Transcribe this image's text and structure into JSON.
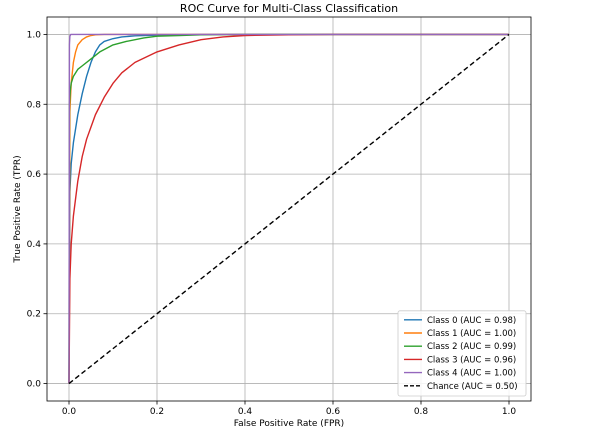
{
  "chart_data": {
    "type": "line",
    "title": "ROC Curve for Multi-Class Classification",
    "xlabel": "False Positive Rate (FPR)",
    "ylabel": "True Positive Rate (TPR)",
    "xlim": [
      -0.05,
      1.05
    ],
    "ylim": [
      -0.05,
      1.05
    ],
    "xticks": [
      0.0,
      0.2,
      0.4,
      0.6,
      0.8,
      1.0
    ],
    "xtick_labels": [
      "0.0",
      "0.2",
      "0.4",
      "0.6",
      "0.8",
      "1.0"
    ],
    "yticks": [
      0.0,
      0.2,
      0.4,
      0.6,
      0.8,
      1.0
    ],
    "ytick_labels": [
      "0.0",
      "0.2",
      "0.4",
      "0.6",
      "0.8",
      "1.0"
    ],
    "grid": true,
    "legend_position": "bottom-right",
    "series": [
      {
        "name": "Class 0 (AUC = 0.98)",
        "color": "#1f77b4",
        "dash": "solid",
        "x": [
          0,
          0.002,
          0.005,
          0.01,
          0.02,
          0.03,
          0.04,
          0.05,
          0.06,
          0.07,
          0.08,
          0.1,
          0.12,
          0.15,
          0.2,
          0.25,
          0.3,
          0.4,
          1.0
        ],
        "y": [
          0,
          0.55,
          0.63,
          0.69,
          0.77,
          0.83,
          0.88,
          0.92,
          0.95,
          0.97,
          0.98,
          0.988,
          0.993,
          0.996,
          0.998,
          0.999,
          1.0,
          1.0,
          1.0
        ]
      },
      {
        "name": "Class 1 (AUC = 1.00)",
        "color": "#ff7f0e",
        "dash": "solid",
        "x": [
          0,
          0.002,
          0.005,
          0.01,
          0.015,
          0.02,
          0.03,
          0.04,
          0.05,
          0.06,
          0.08,
          0.1,
          1.0
        ],
        "y": [
          0,
          0.78,
          0.86,
          0.92,
          0.95,
          0.97,
          0.985,
          0.993,
          0.997,
          0.999,
          1.0,
          1.0,
          1.0
        ]
      },
      {
        "name": "Class 2 (AUC = 0.99)",
        "color": "#2ca02c",
        "dash": "solid",
        "x": [
          0,
          0.001,
          0.003,
          0.005,
          0.01,
          0.02,
          0.03,
          0.05,
          0.07,
          0.1,
          0.13,
          0.17,
          0.2,
          0.25,
          0.3,
          0.4,
          0.5,
          1.0
        ],
        "y": [
          0,
          0.8,
          0.84,
          0.86,
          0.88,
          0.9,
          0.91,
          0.93,
          0.95,
          0.97,
          0.98,
          0.99,
          0.995,
          0.997,
          0.999,
          1.0,
          1.0,
          1.0
        ]
      },
      {
        "name": "Class 3 (AUC = 0.96)",
        "color": "#d62728",
        "dash": "solid",
        "x": [
          0,
          0.002,
          0.005,
          0.01,
          0.02,
          0.03,
          0.04,
          0.06,
          0.08,
          0.1,
          0.12,
          0.15,
          0.2,
          0.25,
          0.3,
          0.35,
          0.4,
          0.5,
          0.6,
          1.0
        ],
        "y": [
          0,
          0.3,
          0.4,
          0.48,
          0.58,
          0.65,
          0.7,
          0.77,
          0.82,
          0.86,
          0.89,
          0.92,
          0.95,
          0.97,
          0.985,
          0.993,
          0.997,
          0.999,
          1.0,
          1.0
        ]
      },
      {
        "name": "Class 4 (AUC = 1.00)",
        "color": "#9467bd",
        "dash": "solid",
        "x": [
          0,
          0.001,
          0.002,
          0.004,
          0.01,
          1.0
        ],
        "y": [
          0,
          0.97,
          0.995,
          1.0,
          1.0,
          1.0
        ]
      },
      {
        "name": "Chance (AUC = 0.50)",
        "color": "#000000",
        "dash": "dashed",
        "x": [
          0,
          1
        ],
        "y": [
          0,
          1
        ]
      }
    ]
  }
}
